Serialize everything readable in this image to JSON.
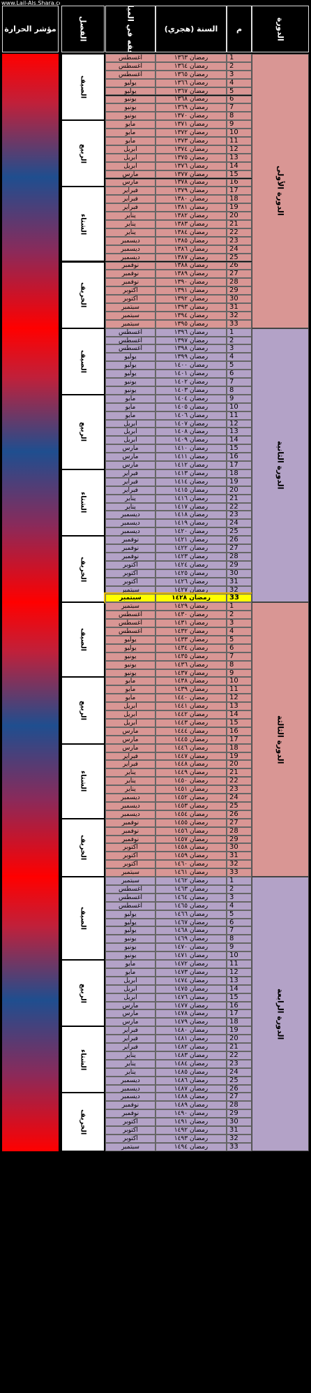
{
  "watermark": "www.Lail-Als.Shara.com",
  "header": {
    "heat": "مؤشر الحرارة",
    "season": "الفصل",
    "month": "موافقه في الميلادي",
    "year": "السنة (هجري)",
    "num": "م",
    "cycle": "الدورة"
  },
  "colors": {
    "cycle_a": "#d99694",
    "cycle_b": "#b3a2c7",
    "highlight": "#ffff00",
    "heat_red": "#ff0000",
    "heat_blue": "#1f4e8f"
  },
  "cycles": [
    {
      "name": "الدورة الأولى",
      "color": "#d99694",
      "start_year": 1363,
      "seasons": [
        {
          "name": "الصيف",
          "count": 8
        },
        {
          "name": "الربيع",
          "count": 8
        },
        {
          "name": "الشتاء",
          "count": 9
        },
        {
          "name": "الخريف",
          "count": 8
        }
      ],
      "rows": [
        {
          "num": "1",
          "year": "رمضان ١٣٦٣",
          "month": "أغسطس"
        },
        {
          "num": "2",
          "year": "رمضان ١٣٦٤",
          "month": "أغسطس"
        },
        {
          "num": "3",
          "year": "رمضان ١٣٦٥",
          "month": "أغسطس"
        },
        {
          "num": "4",
          "year": "رمضان ١٣٦٦",
          "month": "يوليو"
        },
        {
          "num": "5",
          "year": "رمضان ١٣٦٧",
          "month": "يوليو"
        },
        {
          "num": "6",
          "year": "رمضان ١٣٦٨",
          "month": "يونيو"
        },
        {
          "num": "7",
          "year": "رمضان ١٣٦٩",
          "month": "يونيو"
        },
        {
          "num": "8",
          "year": "رمضان ١٣٧٠",
          "month": "يونيو"
        },
        {
          "num": "9",
          "year": "رمضان ١٣٧١",
          "month": "مايو"
        },
        {
          "num": "10",
          "year": "رمضان ١٣٧٢",
          "month": "مايو"
        },
        {
          "num": "11",
          "year": "رمضان ١٣٧٣",
          "month": "مايو"
        },
        {
          "num": "12",
          "year": "رمضان ١٣٧٤",
          "month": "أبريل"
        },
        {
          "num": "13",
          "year": "رمضان ١٣٧٥",
          "month": "أبريل"
        },
        {
          "num": "14",
          "year": "رمضان ١٣٧٦",
          "month": "أبريل"
        },
        {
          "num": "15",
          "year": "رمضان ١٣٧٧",
          "month": "مارس"
        },
        {
          "num": "16",
          "year": "رمضان ١٣٧٨",
          "month": "مارس"
        },
        {
          "num": "17",
          "year": "رمضان ١٣٧٩",
          "month": "فبراير"
        },
        {
          "num": "18",
          "year": "رمضان ١٣٨٠",
          "month": "فبراير"
        },
        {
          "num": "19",
          "year": "رمضان ١٣٨١",
          "month": "فبراير"
        },
        {
          "num": "20",
          "year": "رمضان ١٣٨٢",
          "month": "يناير"
        },
        {
          "num": "21",
          "year": "رمضان ١٣٨٣",
          "month": "يناير"
        },
        {
          "num": "22",
          "year": "رمضان ١٣٨٤",
          "month": "يناير"
        },
        {
          "num": "23",
          "year": "رمضان ١٣٨٥",
          "month": "ديسمبر"
        },
        {
          "num": "24",
          "year": "رمضان ١٣٨٦",
          "month": "ديسمبر"
        },
        {
          "num": "25",
          "year": "رمضان ١٣٨٧",
          "month": "ديسمبر"
        },
        {
          "num": "26",
          "year": "رمضان ١٣٨٨",
          "month": "نوفمبر"
        },
        {
          "num": "27",
          "year": "رمضان ١٣٨٩",
          "month": "نوفمبر"
        },
        {
          "num": "28",
          "year": "رمضان ١٣٩٠",
          "month": "نوفمبر"
        },
        {
          "num": "29",
          "year": "رمضان ١٣٩١",
          "month": "أكتوبر"
        },
        {
          "num": "30",
          "year": "رمضان ١٣٩٢",
          "month": "أكتوبر"
        },
        {
          "num": "31",
          "year": "رمضان ١٣٩٣",
          "month": "سبتمبر"
        },
        {
          "num": "32",
          "year": "رمضان ١٣٩٤",
          "month": "سبتمبر"
        },
        {
          "num": "33",
          "year": "رمضان ١٣٩٥",
          "month": "سبتمبر"
        }
      ]
    },
    {
      "name": "الدورة الثانية",
      "color": "#b3a2c7",
      "start_year": 1396,
      "seasons": [
        {
          "name": "الصيف",
          "count": 8
        },
        {
          "name": "الربيع",
          "count": 9
        },
        {
          "name": "الشتاء",
          "count": 8
        },
        {
          "name": "الخريف",
          "count": 8
        }
      ],
      "rows": [
        {
          "num": "1",
          "year": "رمضان ١٣٩٦",
          "month": "أغسطس"
        },
        {
          "num": "2",
          "year": "رمضان ١٣٩٧",
          "month": "أغسطس"
        },
        {
          "num": "3",
          "year": "رمضان ١٣٩٨",
          "month": "أغسطس"
        },
        {
          "num": "4",
          "year": "رمضان ١٣٩٩",
          "month": "يوليو"
        },
        {
          "num": "5",
          "year": "رمضان ١٤٠٠",
          "month": "يوليو"
        },
        {
          "num": "6",
          "year": "رمضان ١٤٠١",
          "month": "يوليو"
        },
        {
          "num": "7",
          "year": "رمضان ١٤٠٢",
          "month": "يونيو"
        },
        {
          "num": "8",
          "year": "رمضان ١٤٠٣",
          "month": "يونيو"
        },
        {
          "num": "9",
          "year": "رمضان ١٤٠٤",
          "month": "مايو"
        },
        {
          "num": "10",
          "year": "رمضان ١٤٠٥",
          "month": "مايو"
        },
        {
          "num": "11",
          "year": "رمضان ١٤٠٦",
          "month": "مايو"
        },
        {
          "num": "12",
          "year": "رمضان ١٤٠٧",
          "month": "أبريل"
        },
        {
          "num": "13",
          "year": "رمضان ١٤٠٨",
          "month": "أبريل"
        },
        {
          "num": "14",
          "year": "رمضان ١٤٠٩",
          "month": "أبريل"
        },
        {
          "num": "15",
          "year": "رمضان ١٤١٠",
          "month": "مارس"
        },
        {
          "num": "16",
          "year": "رمضان ١٤١١",
          "month": "مارس"
        },
        {
          "num": "17",
          "year": "رمضان ١٤١٢",
          "month": "مارس"
        },
        {
          "num": "18",
          "year": "رمضان ١٤١٣",
          "month": "فبراير"
        },
        {
          "num": "19",
          "year": "رمضان ١٤١٤",
          "month": "فبراير"
        },
        {
          "num": "20",
          "year": "رمضان ١٤١٥",
          "month": "فبراير"
        },
        {
          "num": "21",
          "year": "رمضان ١٤١٦",
          "month": "يناير"
        },
        {
          "num": "22",
          "year": "رمضان ١٤١٧",
          "month": "يناير"
        },
        {
          "num": "23",
          "year": "رمضان ١٤١٨",
          "month": "ديسمبر"
        },
        {
          "num": "24",
          "year": "رمضان ١٤١٩",
          "month": "ديسمبر"
        },
        {
          "num": "25",
          "year": "رمضان ١٤٢٠",
          "month": "ديسمبر"
        },
        {
          "num": "26",
          "year": "رمضان ١٤٢١",
          "month": "نوفمبر"
        },
        {
          "num": "27",
          "year": "رمضان ١٤٢٢",
          "month": "نوفمبر"
        },
        {
          "num": "28",
          "year": "رمضان ١٤٢٣",
          "month": "نوفمبر"
        },
        {
          "num": "29",
          "year": "رمضان ١٤٢٤",
          "month": "أكتوبر"
        },
        {
          "num": "30",
          "year": "رمضان ١٤٢٥",
          "month": "أكتوبر"
        },
        {
          "num": "31",
          "year": "رمضان ١٤٢٦",
          "month": "أكتوبر"
        },
        {
          "num": "32",
          "year": "رمضان ١٤٢٧",
          "month": "سبتمبر"
        },
        {
          "num": "33",
          "year": "رمضان ١٤٢٨",
          "month": "سبتمبر",
          "highlight": true
        }
      ]
    },
    {
      "name": "الدورة الثالثة",
      "color": "#d99694",
      "start_year": 1429,
      "seasons": [
        {
          "name": "الصيف",
          "count": 9
        },
        {
          "name": "الربيع",
          "count": 8
        },
        {
          "name": "الشتاء",
          "count": 9
        },
        {
          "name": "الخريف",
          "count": 7
        }
      ],
      "rows": [
        {
          "num": "1",
          "year": "رمضان ١٤٢٩",
          "month": "سبتمبر"
        },
        {
          "num": "2",
          "year": "رمضان ١٤٣٠",
          "month": "أغسطس"
        },
        {
          "num": "3",
          "year": "رمضان ١٤٣١",
          "month": "أغسطس"
        },
        {
          "num": "4",
          "year": "رمضان ١٤٣٢",
          "month": "أغسطس"
        },
        {
          "num": "5",
          "year": "رمضان ١٤٣٣",
          "month": "يوليو"
        },
        {
          "num": "6",
          "year": "رمضان ١٤٣٤",
          "month": "يوليو"
        },
        {
          "num": "7",
          "year": "رمضان ١٤٣٥",
          "month": "يونيو"
        },
        {
          "num": "8",
          "year": "رمضان ١٤٣٦",
          "month": "يونيو"
        },
        {
          "num": "9",
          "year": "رمضان ١٤٣٧",
          "month": "يونيو"
        },
        {
          "num": "10",
          "year": "رمضان ١٤٣٨",
          "month": "مايو"
        },
        {
          "num": "11",
          "year": "رمضان ١٤٣٩",
          "month": "مايو"
        },
        {
          "num": "12",
          "year": "رمضان ١٤٤٠",
          "month": "مايو"
        },
        {
          "num": "13",
          "year": "رمضان ١٤٤١",
          "month": "أبريل"
        },
        {
          "num": "14",
          "year": "رمضان ١٤٤٢",
          "month": "أبريل"
        },
        {
          "num": "15",
          "year": "رمضان ١٤٤٣",
          "month": "أبريل"
        },
        {
          "num": "16",
          "year": "رمضان ١٤٤٤",
          "month": "مارس"
        },
        {
          "num": "17",
          "year": "رمضان ١٤٤٥",
          "month": "مارس"
        },
        {
          "num": "18",
          "year": "رمضان ١٤٤٦",
          "month": "مارس"
        },
        {
          "num": "19",
          "year": "رمضان ١٤٤٧",
          "month": "فبراير"
        },
        {
          "num": "20",
          "year": "رمضان ١٤٤٨",
          "month": "فبراير"
        },
        {
          "num": "21",
          "year": "رمضان ١٤٤٩",
          "month": "يناير"
        },
        {
          "num": "22",
          "year": "رمضان ١٤٥٠",
          "month": "يناير"
        },
        {
          "num": "23",
          "year": "رمضان ١٤٥١",
          "month": "يناير"
        },
        {
          "num": "24",
          "year": "رمضان ١٤٥٢",
          "month": "ديسمبر"
        },
        {
          "num": "25",
          "year": "رمضان ١٤٥٣",
          "month": "ديسمبر"
        },
        {
          "num": "26",
          "year": "رمضان ١٤٥٤",
          "month": "ديسمبر"
        },
        {
          "num": "27",
          "year": "رمضان ١٤٥٥",
          "month": "نوفمبر"
        },
        {
          "num": "28",
          "year": "رمضان ١٤٥٦",
          "month": "نوفمبر"
        },
        {
          "num": "29",
          "year": "رمضان ١٤٥٧",
          "month": "نوفمبر"
        },
        {
          "num": "30",
          "year": "رمضان ١٤٥٨",
          "month": "أكتوبر"
        },
        {
          "num": "31",
          "year": "رمضان ١٤٥٩",
          "month": "أكتوبر"
        },
        {
          "num": "32",
          "year": "رمضان ١٤٦٠",
          "month": "أكتوبر"
        },
        {
          "num": "33",
          "year": "رمضان ١٤٦١",
          "month": "سبتمبر"
        }
      ]
    },
    {
      "name": "الدورة الرابعة",
      "color": "#b3a2c7",
      "start_year": 1462,
      "seasons": [
        {
          "name": "الصيف",
          "count": 10
        },
        {
          "name": "الربيع",
          "count": 8
        },
        {
          "name": "الشتاء",
          "count": 8
        },
        {
          "name": "الخريف",
          "count": 7
        }
      ],
      "rows": [
        {
          "num": "1",
          "year": "رمضان ١٤٦٢",
          "month": "سبتمبر"
        },
        {
          "num": "2",
          "year": "رمضان ١٤٦٣",
          "month": "أغسطس"
        },
        {
          "num": "3",
          "year": "رمضان ١٤٦٤",
          "month": "أغسطس"
        },
        {
          "num": "4",
          "year": "رمضان ١٤٦٥",
          "month": "أغسطس"
        },
        {
          "num": "5",
          "year": "رمضان ١٤٦٦",
          "month": "يوليو"
        },
        {
          "num": "6",
          "year": "رمضان ١٤٦٧",
          "month": "يوليو"
        },
        {
          "num": "7",
          "year": "رمضان ١٤٦٨",
          "month": "يوليو"
        },
        {
          "num": "8",
          "year": "رمضان ١٤٦٩",
          "month": "يونيو"
        },
        {
          "num": "9",
          "year": "رمضان ١٤٧٠",
          "month": "يونيو"
        },
        {
          "num": "10",
          "year": "رمضان ١٤٧١",
          "month": "يونيو"
        },
        {
          "num": "11",
          "year": "رمضان ١٤٧٢",
          "month": "مايو"
        },
        {
          "num": "12",
          "year": "رمضان ١٤٧٣",
          "month": "مايو"
        },
        {
          "num": "13",
          "year": "رمضان ١٤٧٤",
          "month": "أبريل"
        },
        {
          "num": "14",
          "year": "رمضان ١٤٧٥",
          "month": "أبريل"
        },
        {
          "num": "15",
          "year": "رمضان ١٤٧٦",
          "month": "أبريل"
        },
        {
          "num": "16",
          "year": "رمضان ١٤٧٧",
          "month": "مارس"
        },
        {
          "num": "17",
          "year": "رمضان ١٤٧٨",
          "month": "مارس"
        },
        {
          "num": "18",
          "year": "رمضان ١٤٧٩",
          "month": "مارس"
        },
        {
          "num": "19",
          "year": "رمضان ١٤٨٠",
          "month": "فبراير"
        },
        {
          "num": "20",
          "year": "رمضان ١٤٨١",
          "month": "فبراير"
        },
        {
          "num": "21",
          "year": "رمضان ١٤٨٢",
          "month": "فبراير"
        },
        {
          "num": "22",
          "year": "رمضان ١٤٨٣",
          "month": "يناير"
        },
        {
          "num": "23",
          "year": "رمضان ١٤٨٤",
          "month": "يناير"
        },
        {
          "num": "24",
          "year": "رمضان ١٤٨٥",
          "month": "يناير"
        },
        {
          "num": "25",
          "year": "رمضان ١٤٨٦",
          "month": "ديسمبر"
        },
        {
          "num": "26",
          "year": "رمضان ١٤٨٧",
          "month": "ديسمبر"
        },
        {
          "num": "27",
          "year": "رمضان ١٤٨٨",
          "month": "ديسمبر"
        },
        {
          "num": "28",
          "year": "رمضان ١٤٨٩",
          "month": "نوفمبر"
        },
        {
          "num": "29",
          "year": "رمضان ١٤٩٠",
          "month": "نوفمبر"
        },
        {
          "num": "30",
          "year": "رمضان ١٤٩١",
          "month": "أكتوبر"
        },
        {
          "num": "31",
          "year": "رمضان ١٤٩٢",
          "month": "أكتوبر"
        },
        {
          "num": "32",
          "year": "رمضان ١٤٩٣",
          "month": "أكتوبر"
        },
        {
          "num": "33",
          "year": "رمضان ١٤٩٤",
          "month": "سبتمبر"
        }
      ]
    }
  ]
}
